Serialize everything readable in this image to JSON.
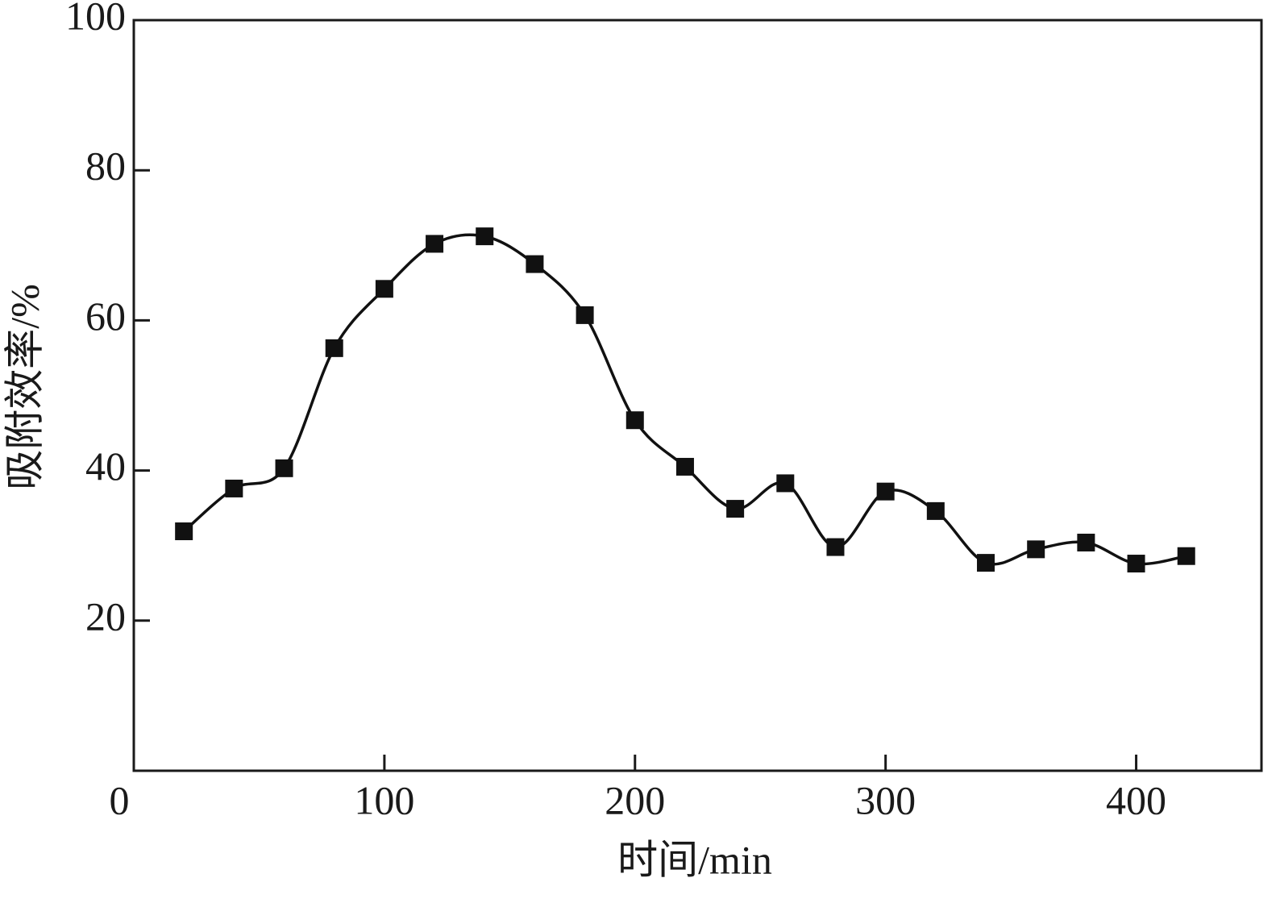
{
  "chart_data": {
    "type": "line",
    "x_label": "时间/min",
    "y_label": "吸附效率/%",
    "x": [
      20,
      40,
      60,
      80,
      100,
      120,
      140,
      160,
      180,
      200,
      220,
      240,
      260,
      280,
      300,
      320,
      340,
      360,
      380,
      400,
      420
    ],
    "values": [
      31.9,
      37.6,
      40.3,
      56.3,
      64.2,
      70.2,
      71.2,
      67.5,
      60.7,
      46.7,
      40.5,
      34.9,
      38.3,
      29.8,
      37.2,
      34.6,
      27.7,
      29.5,
      30.4,
      27.6,
      28.6
    ],
    "color": "#111111",
    "marker": "square",
    "xlim": [
      0,
      450
    ],
    "xticks": [
      0,
      100,
      200,
      300,
      400
    ],
    "ylim": [
      0,
      100
    ],
    "yticks": [
      20,
      40,
      60,
      80,
      100
    ],
    "grid": false
  }
}
